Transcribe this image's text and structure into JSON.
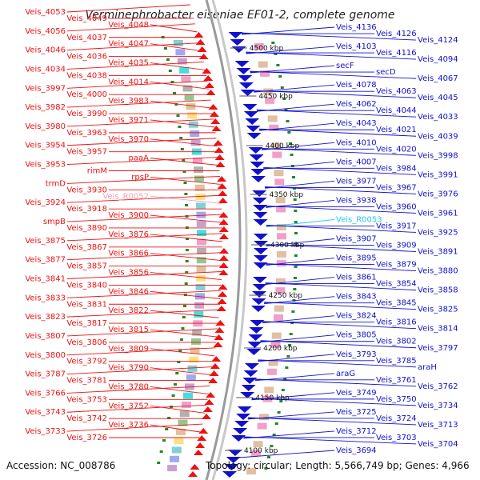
{
  "title": "Verminephrobacter eiseniae EF01-2, complete genome",
  "accession": "Accession: NC_008786",
  "summary": "Topology: circular; Length: 5,566,749 bp; Genes: 4,966",
  "colors": {
    "left_genes": "#ee1111",
    "right_genes": "#1111cc",
    "rna_left": "#f4a0b8",
    "rna_right": "#22c8e8",
    "backbone": "#9a9a9a",
    "tick": "#228822"
  },
  "kbp_markers": [
    "4500 kbp",
    "4450 kbp",
    "4400 kbp",
    "4350 kbp",
    "4300 kbp",
    "4250 kbp",
    "4200 kbp",
    "4150 kbp",
    "4100 kbp"
  ],
  "left_labels": [
    "Veis_4053",
    "Veis_4049",
    "Veis_4048",
    "Veis_4056",
    "Veis_4037",
    "Veis_4047",
    "Veis_4046",
    "Veis_4036",
    "Veis_4035",
    "Veis_4034",
    "Veis_4038",
    "Veis_4014",
    "Veis_3997",
    "Veis_4000",
    "Veis_3983",
    "Veis_3982",
    "Veis_3990",
    "Veis_3971",
    "Veis_3980",
    "Veis_3963",
    "Veis_3970",
    "Veis_3954",
    "Veis_3957",
    "paaA",
    "Veis_3953",
    "rimM",
    "rpsP",
    "trmD",
    "Veis_3930",
    "Veis_R0052",
    "Veis_3924",
    "Veis_3918",
    "Veis_3900",
    "smpB",
    "Veis_3890",
    "Veis_3876",
    "Veis_3875",
    "Veis_3867",
    "Veis_3866",
    "Veis_3877",
    "Veis_3857",
    "Veis_3856",
    "Veis_3841",
    "Veis_3840",
    "Veis_3846",
    "Veis_3833",
    "Veis_3831",
    "Veis_3822",
    "Veis_3823",
    "Veis_3817",
    "Veis_3815",
    "Veis_3807",
    "Veis_3806",
    "Veis_3809",
    "Veis_3800",
    "Veis_3792",
    "Veis_3790",
    "Veis_3787",
    "Veis_3781",
    "Veis_3780",
    "Veis_3766",
    "Veis_3753",
    "Veis_3752",
    "Veis_3743",
    "Veis_3742",
    "Veis_3736",
    "Veis_3733",
    "Veis_3726"
  ],
  "right_labels": [
    "Veis_4136",
    "Veis_4126",
    "Veis_4124",
    "Veis_4103",
    "Veis_4116",
    "Veis_4094",
    "secF",
    "secD",
    "Veis_4067",
    "Veis_4078",
    "Veis_4063",
    "Veis_4045",
    "Veis_4062",
    "Veis_4044",
    "Veis_4033",
    "Veis_4043",
    "Veis_4021",
    "Veis_4039",
    "Veis_4010",
    "Veis_4020",
    "Veis_3998",
    "Veis_4007",
    "Veis_3984",
    "Veis_3991",
    "Veis_3977",
    "Veis_3967",
    "Veis_3976",
    "Veis_3938",
    "Veis_3960",
    "Veis_3961",
    "Veis_R0053",
    "Veis_3917",
    "Veis_3925",
    "Veis_3907",
    "Veis_3909",
    "Veis_3891",
    "Veis_3895",
    "Veis_3879",
    "Veis_3880",
    "Veis_3861",
    "Veis_3854",
    "Veis_3858",
    "Veis_3843",
    "Veis_3845",
    "Veis_3825",
    "Veis_3824",
    "Veis_3816",
    "Veis_3814",
    "Veis_3805",
    "Veis_3802",
    "Veis_3797",
    "Veis_3793",
    "Veis_3785",
    "araH",
    "araG",
    "Veis_3761",
    "Veis_3762",
    "Veis_3749",
    "Veis_3750",
    "Veis_3734",
    "Veis_3725",
    "Veis_3724",
    "Veis_3713",
    "Veis_3712",
    "Veis_3703",
    "Veis_3704",
    "Veis_3694"
  ]
}
